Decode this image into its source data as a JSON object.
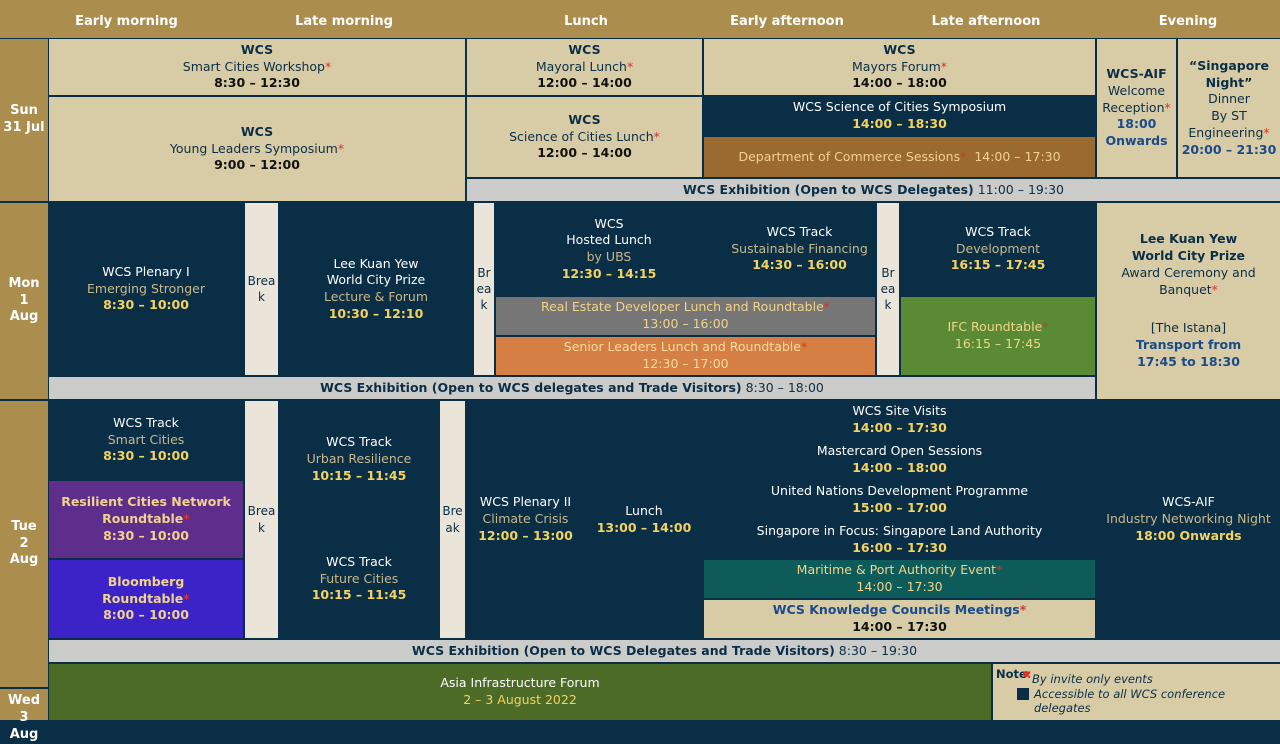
{
  "header": {
    "early_morning": "Early morning",
    "late_morning": "Late morning",
    "lunch": "Lunch",
    "early_afternoon": "Early afternoon",
    "late_afternoon": "Late afternoon",
    "evening": "Evening"
  },
  "days": {
    "sun": [
      "Sun",
      "31 Jul"
    ],
    "mon": [
      "Mon",
      "1 Aug"
    ],
    "tue": [
      "Tue",
      "2 Aug"
    ],
    "wed": [
      "Wed",
      "3 Aug"
    ]
  },
  "break_label": "Break",
  "sun": {
    "workshop": {
      "org": "WCS",
      "title": "Smart Cities Workshop",
      "time": "8:30 – 12:30"
    },
    "mayoral_lunch": {
      "org": "WCS",
      "title": "Mayoral Lunch",
      "time": "12:00 – 14:00"
    },
    "mayors_forum": {
      "org": "WCS",
      "title": "Mayors Forum",
      "time": "14:00 – 18:00"
    },
    "young_leaders": {
      "org": "WCS",
      "title": "Young Leaders Symposium",
      "time": "9:00 – 12:00"
    },
    "science_lunch": {
      "org": "WCS",
      "title": "Science of Cities Lunch",
      "time": "12:00 – 14:00"
    },
    "science_symposium": {
      "title": "WCS Science of Cities Symposium",
      "time": "14:00 – 18:30"
    },
    "commerce": {
      "title": "Department of Commerce Sessions",
      "time": "14:00 – 17:30"
    },
    "wcs_aif": {
      "org": "WCS-AIF",
      "l1": "Welcome",
      "l2": "Reception",
      "l3": "18:00",
      "l4": "Onwards"
    },
    "sg_night": {
      "l1": "“Singapore",
      "l2": "Night”",
      "l3": "Dinner",
      "l4": "By ST",
      "l5": "Engineering",
      "time": "20:00 – 21:30"
    },
    "exhibition": {
      "label": "WCS Exhibition (Open to WCS Delegates)",
      "time": "11:00 – 19:30"
    }
  },
  "mon": {
    "plenary": {
      "org": "WCS Plenary I",
      "title": "Emerging Stronger",
      "time": "8:30 – 10:00"
    },
    "lky_lecture": {
      "l1": "Lee Kuan Yew",
      "l2": "World City Prize",
      "l3": "Lecture & Forum",
      "time": "10:30 – 12:10"
    },
    "hosted_lunch": {
      "l1": "WCS",
      "l2": "Hosted Lunch",
      "l3": "by UBS",
      "time": "12:30 – 14:15"
    },
    "sustainable": {
      "org": "WCS Track",
      "title": "Sustainable Financing",
      "time": "14:30 – 16:00"
    },
    "development": {
      "org": "WCS Track",
      "title": "Development",
      "time": "16:15 – 17:45"
    },
    "real_estate": {
      "title": "Real Estate Developer Lunch and Roundtable",
      "time": "13:00 – 16:00"
    },
    "senior": {
      "title": "Senior Leaders Lunch and Roundtable",
      "time": "12:30 – 17:00"
    },
    "ifc": {
      "title": "IFC Roundtable",
      "time": "16:15 – 17:45"
    },
    "lky_prize": {
      "l1": "Lee Kuan Yew",
      "l2": "World City Prize",
      "l3": "Award Ceremony and",
      "l4": "Banquet",
      "l5": "[The Istana]",
      "l6": "Transport from",
      "l7": "17:45 to 18:30"
    },
    "exhibition": {
      "label": "WCS Exhibition (Open to WCS delegates and Trade Visitors)",
      "time": "8:30 – 18:00"
    }
  },
  "tue": {
    "smart": {
      "org": "WCS Track",
      "title": "Smart Cities",
      "time": "8:30 – 10:00"
    },
    "resilient": {
      "l1": "Resilient Cities Network",
      "l2": "Roundtable",
      "time": "8:30 – 10:00"
    },
    "bloomberg": {
      "l1": "Bloomberg",
      "l2": "Roundtable",
      "time": "8:00 – 10:00"
    },
    "urban": {
      "org": "WCS Track",
      "title": "Urban Resilience",
      "time": "10:15 – 11:45"
    },
    "future": {
      "org": "WCS Track",
      "title": "Future Cities",
      "time": "10:15 – 11:45"
    },
    "plenary2": {
      "org": "WCS Plenary II",
      "title": "Climate Crisis",
      "time": "12:00 – 13:00"
    },
    "lunch": {
      "title": "Lunch",
      "time": "13:00 – 14:00"
    },
    "site_visits": {
      "title": "WCS Site Visits",
      "time": "14:00 – 17:30"
    },
    "mastercard": {
      "title": "Mastercard Open Sessions",
      "time": "14:00 – 18:00"
    },
    "undp": {
      "title": "United Nations Development Programme",
      "time": "15:00 – 17:00"
    },
    "sla": {
      "title": "Singapore in Focus: Singapore Land Authority",
      "time": "16:00 – 17:30"
    },
    "maritime": {
      "title": "Maritime & Port Authority Event",
      "time": "14:00 – 17:30"
    },
    "knowledge": {
      "title": "WCS Knowledge Councils Meetings",
      "time": "14:00 – 17:30"
    },
    "wcs_aif": {
      "org": "WCS-AIF",
      "title": "Industry Networking Night",
      "time": "18:00 Onwards"
    },
    "exhibition": {
      "label": "WCS Exhibition (Open to WCS Delegates and Trade Visitors)",
      "time": "8:30 – 19:30"
    }
  },
  "wed": {
    "aif": {
      "title": "Asia Infrastructure Forum",
      "time": "2 – 3 August 2022"
    }
  },
  "note": {
    "label": "Note",
    "invite": "By invite only events",
    "accessible": "Accessible to all WCS conference delegates"
  },
  "colors": {
    "navy": "#0b2e47",
    "gold": "#ab8d4e",
    "beige": "#d8cca6",
    "invite_marker": "#e0302a"
  }
}
